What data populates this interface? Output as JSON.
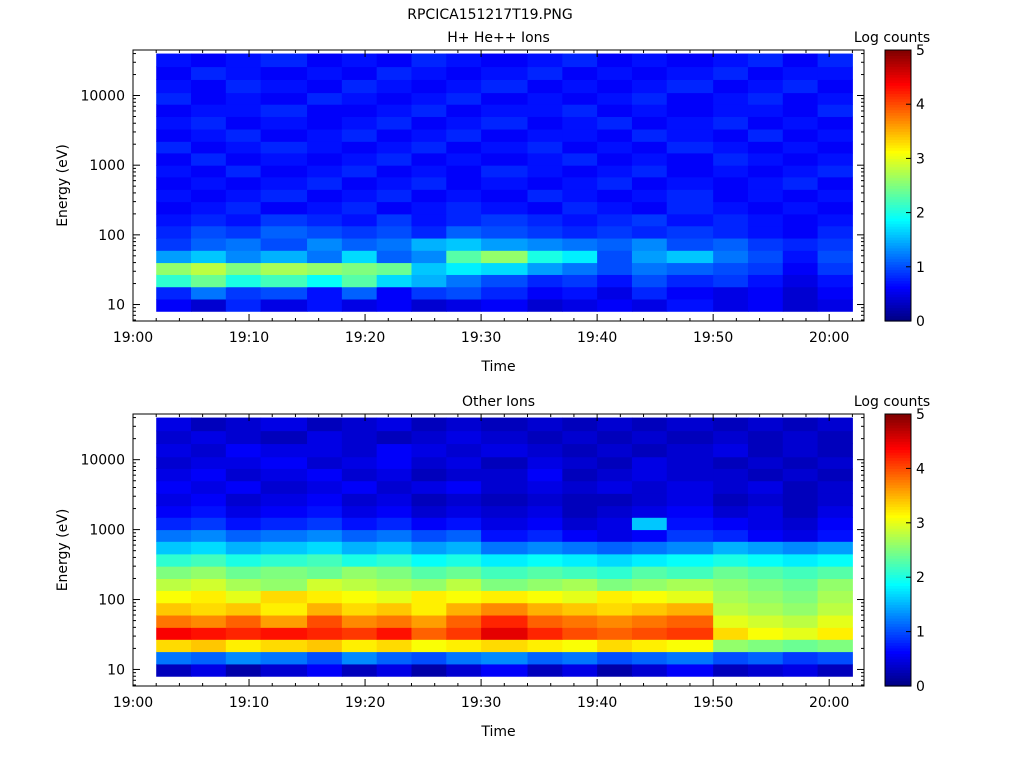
{
  "figure_title": "RPCICA151217T19.PNG",
  "colors": {
    "jet": [
      "#00007f",
      "#0000ff",
      "#007fff",
      "#00ffff",
      "#7fff7f",
      "#ffff00",
      "#ff7f00",
      "#ff0000",
      "#7f0000"
    ]
  },
  "chart_data": [
    {
      "type": "heatmap",
      "title": "H+ He++ Ions",
      "xlabel": "Time",
      "ylabel": "Energy (eV)",
      "colorbar_label": "Log counts",
      "colorbar_ticks": [
        "0",
        "1",
        "2",
        "3",
        "4",
        "5"
      ],
      "clim": [
        0,
        5
      ],
      "x_tick_labels": [
        "19:00",
        "19:10",
        "19:20",
        "19:30",
        "19:40",
        "19:50",
        "20:00"
      ],
      "y_tick_labels": [
        "10",
        "100",
        "1000",
        "10000"
      ],
      "y_scale": "log",
      "xlim": [
        "19:00",
        "20:03"
      ],
      "ylim": [
        5.8,
        45000
      ],
      "time_start": [
        "19:02",
        "19:05",
        "19:08",
        "19:11",
        "19:15",
        "19:18",
        "19:21",
        "19:24",
        "19:27",
        "19:30",
        "19:34",
        "19:37",
        "19:40",
        "19:43",
        "19:46",
        "19:50",
        "19:53",
        "19:56",
        "19:59",
        "20:02"
      ],
      "energy_edges": [
        8,
        12,
        18,
        27,
        40,
        60,
        90,
        135,
        200,
        300,
        450,
        680,
        1000,
        1500,
        2200,
        3300,
        5000,
        7500,
        11000,
        17000,
        26000,
        40000
      ],
      "values": [
        [
          0.6,
          0.4,
          0.8,
          0.5,
          0.7,
          0.5,
          0.6,
          0.4,
          0.5,
          0.6,
          0.4,
          0.5,
          0.6,
          0.5,
          0.7,
          0.5,
          0.6,
          0.4,
          0.5
        ],
        [
          0.8,
          1.2,
          0.9,
          1.0,
          0.7,
          1.1,
          0.6,
          0.9,
          1.0,
          0.8,
          0.6,
          0.7,
          0.5,
          0.8,
          0.6,
          0.5,
          0.6,
          0.4,
          0.6
        ],
        [
          2.1,
          2.4,
          2.0,
          2.2,
          1.9,
          2.3,
          1.7,
          1.5,
          1.2,
          1.0,
          0.8,
          0.9,
          0.7,
          1.0,
          0.8,
          0.9,
          0.7,
          0.5,
          0.7
        ],
        [
          2.6,
          2.8,
          2.5,
          2.7,
          2.6,
          2.5,
          2.4,
          1.6,
          1.8,
          1.7,
          1.4,
          1.2,
          1.0,
          1.2,
          1.1,
          1.0,
          0.9,
          0.6,
          0.9
        ],
        [
          1.4,
          1.6,
          1.3,
          1.5,
          1.2,
          1.7,
          1.1,
          1.3,
          2.3,
          2.6,
          2.0,
          1.8,
          1.0,
          1.4,
          1.6,
          1.2,
          1.0,
          0.7,
          1.0
        ],
        [
          0.9,
          1.1,
          1.2,
          1.0,
          1.3,
          1.1,
          1.2,
          1.5,
          1.6,
          1.4,
          1.3,
          1.2,
          1.1,
          1.3,
          1.0,
          1.1,
          0.9,
          0.8,
          0.9
        ],
        [
          0.8,
          1.0,
          0.9,
          1.1,
          1.0,
          0.9,
          1.0,
          0.8,
          1.1,
          1.0,
          0.9,
          0.8,
          0.9,
          0.8,
          0.9,
          0.8,
          0.7,
          0.6,
          0.8
        ],
        [
          0.7,
          0.8,
          0.7,
          0.9,
          0.8,
          0.7,
          0.9,
          0.7,
          0.8,
          0.9,
          0.8,
          0.7,
          0.8,
          0.9,
          0.7,
          0.8,
          0.7,
          0.6,
          0.7
        ],
        [
          0.6,
          0.7,
          0.8,
          0.6,
          0.7,
          0.8,
          0.6,
          0.7,
          0.8,
          0.7,
          0.6,
          0.8,
          0.7,
          0.6,
          0.8,
          0.7,
          0.6,
          0.7,
          0.6
        ],
        [
          0.7,
          0.6,
          0.7,
          0.8,
          0.6,
          0.7,
          0.8,
          0.6,
          0.7,
          0.6,
          0.8,
          0.7,
          0.6,
          0.7,
          0.8,
          0.6,
          0.7,
          0.6,
          0.7
        ],
        [
          0.6,
          0.7,
          0.6,
          0.7,
          0.8,
          0.6,
          0.7,
          0.8,
          0.6,
          0.7,
          0.6,
          0.7,
          0.8,
          0.6,
          0.7,
          0.6,
          0.7,
          0.8,
          0.6
        ],
        [
          0.7,
          0.6,
          0.8,
          0.6,
          0.7,
          0.8,
          0.6,
          0.7,
          0.6,
          0.8,
          0.7,
          0.6,
          0.7,
          0.8,
          0.6,
          0.7,
          0.6,
          0.7,
          0.8
        ],
        [
          0.6,
          0.8,
          0.6,
          0.7,
          0.6,
          0.7,
          0.8,
          0.6,
          0.7,
          0.6,
          0.7,
          0.8,
          0.6,
          0.7,
          0.6,
          0.8,
          0.7,
          0.6,
          0.7
        ],
        [
          0.8,
          0.6,
          0.7,
          0.8,
          0.7,
          0.6,
          0.7,
          0.8,
          0.6,
          0.7,
          0.8,
          0.6,
          0.7,
          0.6,
          0.8,
          0.7,
          0.6,
          0.7,
          0.6
        ],
        [
          0.6,
          0.7,
          0.8,
          0.6,
          0.7,
          0.8,
          0.6,
          0.7,
          0.8,
          0.6,
          0.7,
          0.7,
          0.6,
          0.8,
          0.7,
          0.6,
          0.8,
          0.6,
          0.7
        ],
        [
          0.7,
          0.8,
          0.6,
          0.7,
          0.6,
          0.7,
          0.8,
          0.6,
          0.7,
          0.8,
          0.6,
          0.7,
          0.8,
          0.6,
          0.7,
          0.8,
          0.6,
          0.7,
          0.6
        ],
        [
          0.6,
          0.7,
          0.7,
          0.8,
          0.6,
          0.6,
          0.7,
          0.8,
          0.6,
          0.7,
          0.7,
          0.8,
          0.6,
          0.7,
          0.6,
          0.7,
          0.7,
          0.6,
          0.8
        ],
        [
          0.8,
          0.6,
          0.7,
          0.6,
          0.8,
          0.7,
          0.6,
          0.7,
          0.8,
          0.6,
          0.7,
          0.6,
          0.7,
          0.8,
          0.6,
          0.7,
          0.8,
          0.6,
          0.7
        ],
        [
          0.7,
          0.6,
          0.8,
          0.7,
          0.6,
          0.8,
          0.7,
          0.6,
          0.7,
          0.8,
          0.6,
          0.7,
          0.6,
          0.7,
          0.8,
          0.6,
          0.7,
          0.8,
          0.6
        ],
        [
          0.6,
          0.8,
          0.7,
          0.6,
          0.7,
          0.6,
          0.8,
          0.7,
          0.6,
          0.7,
          0.8,
          0.6,
          0.7,
          0.6,
          0.7,
          0.8,
          0.6,
          0.7,
          0.7
        ],
        [
          0.7,
          0.6,
          0.7,
          0.8,
          0.6,
          0.7,
          0.6,
          0.8,
          0.7,
          0.6,
          0.7,
          0.8,
          0.6,
          0.7,
          0.6,
          0.7,
          0.8,
          0.6,
          0.8
        ]
      ]
    },
    {
      "type": "heatmap",
      "title": "Other Ions",
      "xlabel": "Time",
      "ylabel": "Energy (eV)",
      "colorbar_label": "Log counts",
      "colorbar_ticks": [
        "0",
        "1",
        "2",
        "3",
        "4",
        "5"
      ],
      "clim": [
        0,
        5
      ],
      "x_tick_labels": [
        "19:00",
        "19:10",
        "19:20",
        "19:30",
        "19:40",
        "19:50",
        "20:00"
      ],
      "y_tick_labels": [
        "10",
        "100",
        "1000",
        "10000"
      ],
      "y_scale": "log",
      "xlim": [
        "19:00",
        "20:03"
      ],
      "ylim": [
        5.8,
        45000
      ],
      "time_start": [
        "19:02",
        "19:05",
        "19:08",
        "19:11",
        "19:15",
        "19:18",
        "19:21",
        "19:24",
        "19:27",
        "19:30",
        "19:34",
        "19:37",
        "19:40",
        "19:43",
        "19:46",
        "19:50",
        "19:53",
        "19:56",
        "19:59",
        "20:02"
      ],
      "energy_edges": [
        8,
        12,
        18,
        27,
        40,
        60,
        90,
        135,
        200,
        300,
        450,
        680,
        1000,
        1500,
        2200,
        3300,
        5000,
        7500,
        11000,
        17000,
        26000,
        40000
      ],
      "values": [
        [
          0.3,
          0.5,
          0.2,
          0.4,
          0.6,
          0.3,
          0.5,
          0.2,
          0.4,
          0.6,
          0.3,
          0.5,
          0.2,
          0.4,
          0.6,
          0.3,
          0.4,
          0.5,
          0.3
        ],
        [
          1.2,
          1.1,
          1.3,
          1.2,
          1.0,
          1.3,
          1.1,
          1.0,
          1.2,
          1.3,
          1.1,
          1.2,
          1.0,
          1.1,
          1.2,
          1.0,
          1.1,
          0.9,
          1.0
        ],
        [
          3.3,
          3.4,
          3.2,
          3.3,
          3.4,
          3.2,
          3.3,
          3.1,
          3.2,
          3.3,
          3.2,
          3.1,
          3.3,
          3.2,
          3.1,
          2.6,
          2.5,
          2.4,
          2.5
        ],
        [
          4.4,
          4.3,
          4.2,
          4.3,
          4.2,
          4.1,
          4.3,
          3.9,
          4.1,
          4.5,
          4.2,
          4.0,
          3.9,
          4.0,
          4.1,
          3.3,
          3.1,
          3.0,
          3.2
        ],
        [
          3.8,
          3.7,
          3.9,
          3.6,
          4.0,
          3.7,
          3.8,
          3.6,
          3.9,
          4.2,
          3.9,
          3.8,
          3.7,
          3.8,
          3.9,
          3.0,
          2.9,
          2.8,
          3.0
        ],
        [
          3.4,
          3.3,
          3.4,
          3.2,
          3.5,
          3.3,
          3.4,
          3.2,
          3.5,
          3.7,
          3.5,
          3.4,
          3.3,
          3.4,
          3.5,
          2.8,
          2.7,
          2.6,
          2.8
        ],
        [
          3.1,
          3.2,
          3.0,
          3.3,
          3.2,
          3.1,
          3.0,
          3.2,
          3.1,
          3.2,
          3.1,
          3.0,
          3.2,
          3.1,
          3.0,
          2.7,
          2.6,
          2.5,
          2.7
        ],
        [
          2.8,
          2.9,
          2.7,
          2.6,
          2.9,
          2.8,
          2.7,
          2.6,
          2.8,
          2.5,
          2.6,
          2.7,
          2.5,
          2.6,
          2.7,
          2.6,
          2.5,
          2.4,
          2.6
        ],
        [
          2.5,
          2.6,
          2.4,
          2.5,
          2.4,
          2.6,
          2.5,
          2.3,
          2.4,
          2.2,
          2.3,
          2.2,
          2.1,
          2.3,
          2.2,
          2.4,
          2.3,
          2.2,
          2.3
        ],
        [
          2.1,
          2.2,
          2.0,
          2.1,
          2.2,
          2.0,
          2.1,
          1.9,
          2.0,
          1.8,
          1.9,
          1.8,
          1.7,
          1.8,
          1.9,
          2.0,
          1.9,
          1.8,
          1.9
        ],
        [
          1.6,
          1.7,
          1.5,
          1.6,
          1.7,
          1.5,
          1.6,
          1.4,
          1.5,
          1.2,
          1.3,
          1.2,
          1.1,
          1.2,
          1.3,
          1.5,
          1.4,
          1.3,
          1.4
        ],
        [
          1.2,
          1.3,
          1.1,
          1.2,
          1.3,
          1.1,
          1.2,
          1.0,
          1.1,
          0.7,
          0.8,
          0.6,
          0.5,
          0.6,
          0.9,
          0.8,
          0.6,
          0.5,
          0.7
        ],
        [
          0.8,
          0.9,
          0.7,
          0.8,
          0.9,
          0.7,
          0.8,
          0.6,
          0.7,
          0.5,
          0.6,
          0.4,
          0.5,
          1.6,
          0.7,
          0.6,
          0.5,
          0.4,
          0.6
        ],
        [
          0.6,
          0.7,
          0.5,
          0.6,
          0.7,
          0.5,
          0.6,
          0.4,
          0.5,
          0.4,
          0.5,
          0.3,
          0.4,
          0.5,
          0.6,
          0.4,
          0.5,
          0.3,
          0.5
        ],
        [
          0.5,
          0.6,
          0.4,
          0.5,
          0.6,
          0.4,
          0.5,
          0.3,
          0.4,
          0.3,
          0.4,
          0.3,
          0.3,
          0.4,
          0.5,
          0.3,
          0.4,
          0.3,
          0.4
        ],
        [
          0.6,
          0.5,
          0.6,
          0.4,
          0.5,
          0.6,
          0.4,
          0.5,
          0.6,
          0.4,
          0.5,
          0.4,
          0.5,
          0.4,
          0.5,
          0.4,
          0.5,
          0.3,
          0.4
        ],
        [
          0.5,
          0.6,
          0.4,
          0.5,
          0.6,
          0.4,
          0.5,
          0.3,
          0.4,
          0.4,
          0.6,
          0.3,
          0.4,
          0.5,
          0.4,
          0.4,
          0.3,
          0.4,
          0.3
        ],
        [
          0.4,
          0.5,
          0.5,
          0.6,
          0.4,
          0.5,
          0.6,
          0.4,
          0.5,
          0.3,
          0.5,
          0.4,
          0.3,
          0.5,
          0.4,
          0.3,
          0.4,
          0.3,
          0.4
        ],
        [
          0.5,
          0.4,
          0.6,
          0.5,
          0.5,
          0.4,
          0.6,
          0.5,
          0.4,
          0.5,
          0.4,
          0.3,
          0.4,
          0.3,
          0.4,
          0.5,
          0.3,
          0.4,
          0.3
        ],
        [
          0.4,
          0.5,
          0.4,
          0.3,
          0.5,
          0.4,
          0.3,
          0.4,
          0.5,
          0.4,
          0.3,
          0.4,
          0.3,
          0.4,
          0.3,
          0.4,
          0.3,
          0.4,
          0.3
        ],
        [
          0.5,
          0.3,
          0.4,
          0.5,
          0.3,
          0.4,
          0.5,
          0.3,
          0.4,
          0.3,
          0.4,
          0.3,
          0.4,
          0.3,
          0.4,
          0.3,
          0.4,
          0.3,
          0.4
        ]
      ]
    }
  ]
}
